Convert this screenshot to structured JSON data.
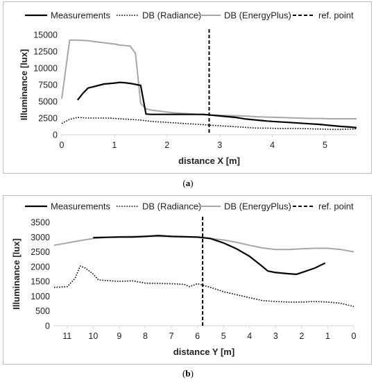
{
  "captions": {
    "a_open": "(",
    "a_label": "a",
    "a_close": ")",
    "b_open": "(",
    "b_label": "b",
    "b_close": ")"
  },
  "colors": {
    "measurements": "#000000",
    "radiance": "#000000",
    "energyplus": "#a6a6a6",
    "ref": "#000000",
    "axis": "#d9d9d9"
  },
  "chart_data": [
    {
      "type": "line",
      "panel": "a",
      "xlabel": "distance X [m]",
      "ylabel": "Illuminance [lux]",
      "xlim": [
        0,
        5.6
      ],
      "ylim": [
        0,
        15000
      ],
      "xticks": [
        0,
        1,
        2,
        3,
        4,
        5
      ],
      "yticks": [
        0,
        2500,
        5000,
        7500,
        10000,
        12500,
        15000
      ],
      "ytick_labels": [
        "0",
        "2500",
        "5000",
        "7500",
        "10000",
        "12500",
        "15000"
      ],
      "grid": false,
      "legend_position": "top",
      "ref_point": 2.8,
      "series": [
        {
          "name": "Measurements",
          "style": "solid-black",
          "x": [
            0.3,
            0.4,
            0.5,
            0.6,
            0.8,
            1.0,
            1.1,
            1.2,
            1.3,
            1.4,
            1.5,
            1.6,
            1.7,
            1.9,
            2.1,
            2.3,
            2.5,
            2.7,
            2.9,
            3.1,
            3.3,
            3.5,
            3.7,
            3.9,
            4.1,
            4.3,
            4.5,
            4.7,
            4.9,
            5.1,
            5.3,
            5.5,
            5.6
          ],
          "y": [
            5200,
            6200,
            7000,
            7200,
            7600,
            7750,
            7850,
            7800,
            7700,
            7550,
            7400,
            3100,
            3050,
            3050,
            3050,
            3050,
            3050,
            3050,
            2900,
            2750,
            2600,
            2350,
            2200,
            2050,
            1950,
            1850,
            1750,
            1650,
            1550,
            1400,
            1250,
            1150,
            1050
          ]
        },
        {
          "name": "DB (Radiance)",
          "style": "dotted-black",
          "x": [
            0.0,
            0.15,
            0.3,
            0.5,
            0.7,
            0.9,
            1.1,
            1.3,
            1.5,
            1.7,
            1.9,
            2.1,
            2.3,
            2.5,
            2.7,
            2.9,
            3.1,
            3.3,
            3.5,
            3.7,
            3.9,
            4.1,
            4.3,
            4.5,
            4.7,
            4.9,
            5.1,
            5.3,
            5.5,
            5.6
          ],
          "y": [
            1700,
            2300,
            2600,
            2500,
            2500,
            2500,
            2400,
            2300,
            2200,
            2000,
            1900,
            1800,
            1700,
            1600,
            1500,
            1400,
            1300,
            1200,
            1100,
            1000,
            1000,
            950,
            950,
            950,
            900,
            850,
            800,
            800,
            850,
            900
          ]
        },
        {
          "name": "DB (EnergyPlus)",
          "style": "solid-gray",
          "x": [
            0.0,
            0.15,
            0.3,
            0.5,
            0.7,
            0.9,
            1.0,
            1.1,
            1.3,
            1.4,
            1.5,
            1.6,
            1.7,
            1.9,
            2.1,
            2.3,
            2.5,
            2.7,
            2.9,
            3.1,
            3.3,
            3.5,
            3.7,
            3.9,
            4.1,
            4.3,
            4.5,
            4.7,
            4.9,
            5.1,
            5.3,
            5.5,
            5.6
          ],
          "y": [
            5400,
            14200,
            14200,
            14100,
            13900,
            13700,
            13600,
            13450,
            13300,
            12200,
            4700,
            3900,
            3700,
            3500,
            3300,
            3200,
            3100,
            3000,
            2950,
            2900,
            2850,
            2800,
            2700,
            2650,
            2600,
            2550,
            2500,
            2450,
            2450,
            2400,
            2400,
            2400,
            2400
          ]
        }
      ]
    },
    {
      "type": "line",
      "panel": "b",
      "xlabel": "distance Y [m]",
      "ylabel": "Illuminance [lux]",
      "xlim": [
        11.5,
        0
      ],
      "ylim": [
        0,
        3500
      ],
      "xticks": [
        11,
        10,
        9,
        8,
        7,
        6,
        5,
        4,
        3,
        2,
        1,
        0
      ],
      "yticks": [
        0,
        500,
        1000,
        1500,
        2000,
        2500,
        3000,
        3500
      ],
      "ytick_labels": [
        "0",
        "500",
        "1000",
        "1500",
        "2000",
        "2500",
        "3000",
        "3500"
      ],
      "grid": false,
      "legend_position": "top",
      "ref_point": 5.8,
      "series": [
        {
          "name": "Measurements",
          "style": "solid-black",
          "x": [
            10.0,
            9.5,
            9.0,
            8.5,
            8.0,
            7.5,
            7.0,
            6.5,
            6.0,
            5.5,
            5.0,
            4.5,
            4.0,
            3.5,
            3.3,
            3.0,
            2.5,
            2.2,
            2.0,
            1.5,
            1.1
          ],
          "y": [
            2980,
            2990,
            3000,
            3000,
            3020,
            3050,
            3020,
            3010,
            3000,
            2950,
            2800,
            2600,
            2350,
            2000,
            1850,
            1800,
            1760,
            1740,
            1800,
            1950,
            2120
          ]
        },
        {
          "name": "DB (Radiance)",
          "style": "dotted-black",
          "x": [
            11.5,
            11.0,
            10.7,
            10.5,
            10.3,
            10.0,
            9.8,
            9.5,
            9.0,
            8.5,
            8.0,
            7.5,
            7.0,
            6.5,
            6.3,
            6.0,
            5.5,
            5.0,
            4.5,
            4.0,
            3.5,
            3.0,
            2.5,
            2.0,
            1.5,
            1.0,
            0.5,
            0.0
          ],
          "y": [
            1300,
            1320,
            1600,
            2020,
            1950,
            1750,
            1550,
            1530,
            1500,
            1520,
            1440,
            1430,
            1420,
            1400,
            1320,
            1420,
            1300,
            1150,
            1050,
            950,
            850,
            820,
            800,
            800,
            820,
            800,
            760,
            650
          ]
        },
        {
          "name": "DB (EnergyPlus)",
          "style": "solid-gray",
          "x": [
            11.5,
            11.0,
            10.5,
            10.0,
            9.5,
            9.0,
            8.5,
            8.0,
            7.5,
            7.0,
            6.5,
            6.0,
            5.5,
            5.0,
            4.5,
            4.0,
            3.5,
            3.0,
            2.5,
            2.0,
            1.5,
            1.0,
            0.5,
            0.0
          ],
          "y": [
            2720,
            2800,
            2880,
            2950,
            2990,
            3010,
            3020,
            3020,
            3020,
            3020,
            3010,
            2990,
            2950,
            2900,
            2820,
            2720,
            2630,
            2580,
            2580,
            2600,
            2620,
            2620,
            2580,
            2500
          ]
        }
      ]
    }
  ],
  "legend_labels": {
    "measurements": "Measurements",
    "radiance": "DB (Radiance)",
    "energyplus": "DB (EnergyPlus)",
    "ref": "ref. point"
  }
}
